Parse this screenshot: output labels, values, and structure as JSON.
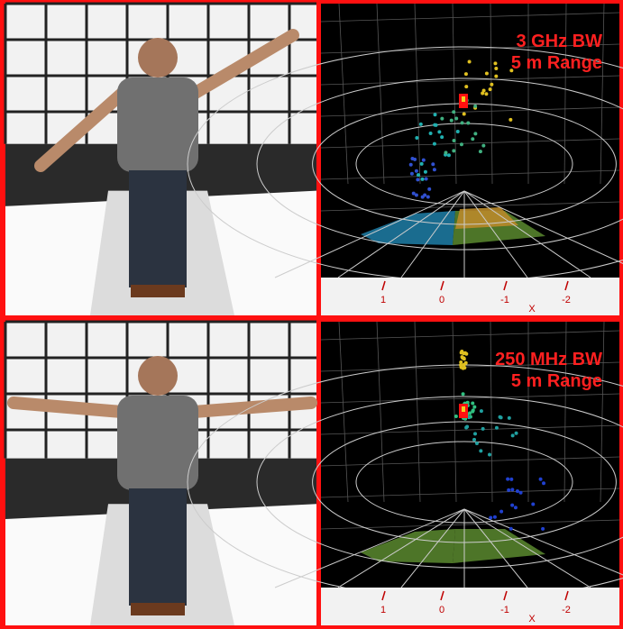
{
  "panels": [
    {
      "annotation": [
        "3 GHz BW",
        "5 m Range"
      ],
      "x_axis": {
        "ticks": [
          1,
          0,
          -1,
          -2
        ],
        "label": "X"
      }
    },
    {
      "annotation": [
        "250 MHz BW",
        "5 m Range"
      ],
      "x_axis": {
        "ticks": [
          1,
          0,
          -1,
          -2
        ],
        "label": "X"
      }
    }
  ]
}
